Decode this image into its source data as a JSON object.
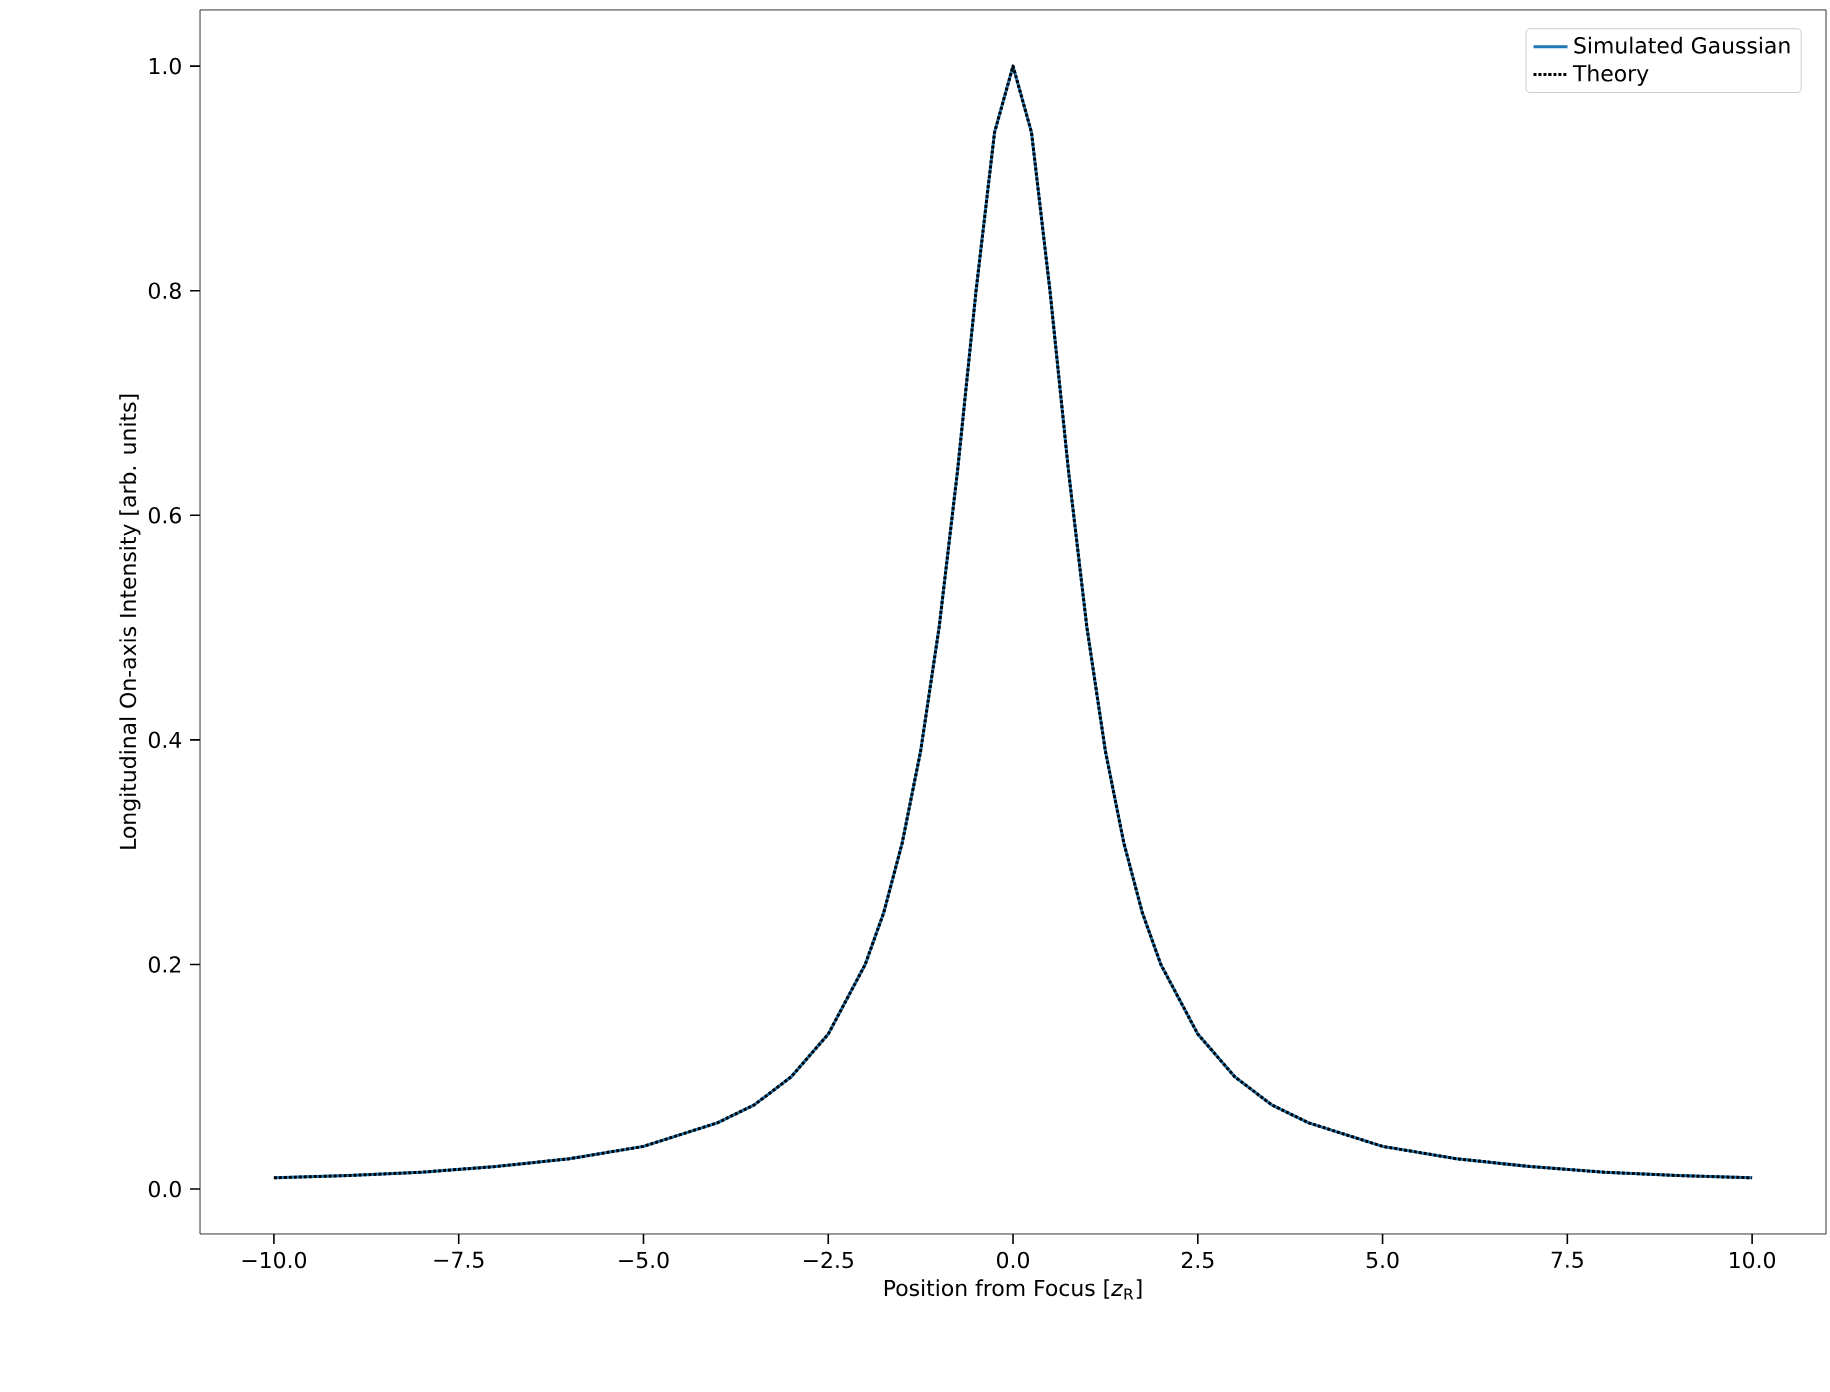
{
  "chart_data": {
    "type": "line",
    "xlabel": "Position from Focus [*z*$_{R}$]",
    "ylabel": "Longitudinal On-axis Intensity [arb. units]",
    "x": [
      -10,
      -9,
      -8,
      -7,
      -6,
      -5,
      -4,
      -3.5,
      -3,
      -2.5,
      -2,
      -1.75,
      -1.5,
      -1.25,
      -1,
      -0.75,
      -0.5,
      -0.25,
      0,
      0.25,
      0.5,
      0.75,
      1,
      1.25,
      1.5,
      1.75,
      2,
      2.5,
      3,
      3.5,
      4,
      5,
      6,
      7,
      8,
      9,
      10
    ],
    "series": [
      {
        "name": "Simulated Gaussian",
        "color": "#1f77b4",
        "line_style": "solid",
        "values": [
          0.01,
          0.012,
          0.015,
          0.02,
          0.027,
          0.038,
          0.059,
          0.075,
          0.1,
          0.138,
          0.2,
          0.246,
          0.308,
          0.39,
          0.5,
          0.64,
          0.8,
          0.941,
          1.0,
          0.941,
          0.8,
          0.64,
          0.5,
          0.39,
          0.308,
          0.246,
          0.2,
          0.138,
          0.1,
          0.075,
          0.059,
          0.038,
          0.027,
          0.02,
          0.015,
          0.012,
          0.01
        ]
      },
      {
        "name": "Theory",
        "color": "#000000",
        "line_style": "dotted",
        "values": [
          0.01,
          0.012,
          0.015,
          0.02,
          0.027,
          0.038,
          0.059,
          0.075,
          0.1,
          0.138,
          0.2,
          0.246,
          0.308,
          0.39,
          0.5,
          0.64,
          0.8,
          0.941,
          1.0,
          0.941,
          0.8,
          0.64,
          0.5,
          0.39,
          0.308,
          0.246,
          0.2,
          0.138,
          0.1,
          0.075,
          0.059,
          0.038,
          0.027,
          0.02,
          0.015,
          0.012,
          0.01
        ]
      }
    ],
    "xlim": [
      -11,
      11
    ],
    "ylim": [
      -0.04,
      1.05
    ],
    "xticks": [
      {
        "value": -10,
        "label": "−10.0"
      },
      {
        "value": -7.5,
        "label": "−7.5"
      },
      {
        "value": -5,
        "label": "−5.0"
      },
      {
        "value": -2.5,
        "label": "−2.5"
      },
      {
        "value": 0,
        "label": "0.0"
      },
      {
        "value": 2.5,
        "label": "2.5"
      },
      {
        "value": 5,
        "label": "5.0"
      },
      {
        "value": 7.5,
        "label": "7.5"
      },
      {
        "value": 10,
        "label": "10.0"
      }
    ],
    "yticks": [
      {
        "value": 0,
        "label": "0.0"
      },
      {
        "value": 0.2,
        "label": "0.2"
      },
      {
        "value": 0.4,
        "label": "0.4"
      },
      {
        "value": 0.6,
        "label": "0.6"
      },
      {
        "value": 0.8,
        "label": "0.8"
      },
      {
        "value": 1,
        "label": "1.0"
      }
    ],
    "grid": false,
    "legend": "top right",
    "marker": "none"
  }
}
